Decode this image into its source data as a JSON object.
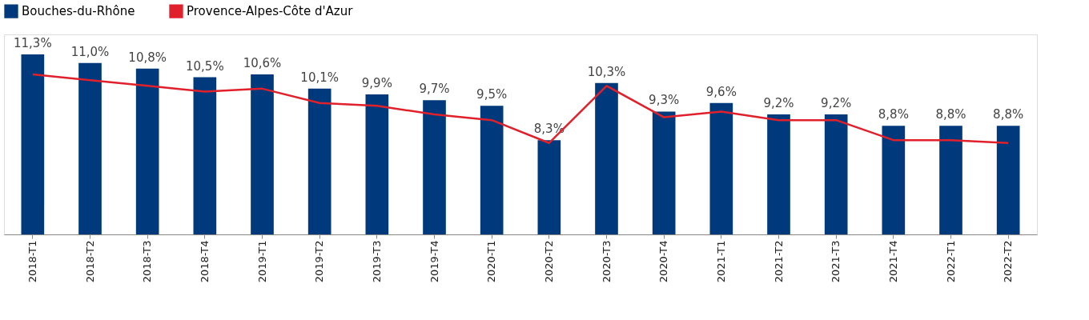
{
  "chart_data": {
    "type": "bar",
    "categories": [
      "2018-T1",
      "2018-T2",
      "2018-T3",
      "2018-T4",
      "2019-T1",
      "2019-T2",
      "2019-T3",
      "2019-T4",
      "2020-T1",
      "2020-T2",
      "2020-T3",
      "2020-T4",
      "2021-T1",
      "2021-T2",
      "2021-T3",
      "2021-T4",
      "2022-T1",
      "2022-T2"
    ],
    "series": [
      {
        "name": "Bouches-du-Rhône",
        "color": "#003a7d",
        "values": [
          11.3,
          11.0,
          10.8,
          10.5,
          10.6,
          10.1,
          9.9,
          9.7,
          9.5,
          8.3,
          10.3,
          9.3,
          9.6,
          9.2,
          9.2,
          8.8,
          8.8,
          8.8
        ],
        "value_labels": [
          "11,3%",
          "11,0%",
          "10,8%",
          "10,5%",
          "10,6%",
          "10,1%",
          "9,9%",
          "9,7%",
          "9,5%",
          "8,3%",
          "10,3%",
          "9,3%",
          "9,6%",
          "9,2%",
          "9,2%",
          "8,8%",
          "8,8%",
          "8,8%"
        ]
      },
      {
        "name": "Provence-Alpes-Côte d'Azur",
        "type": "line",
        "color": "#e0202b",
        "values": [
          10.6,
          10.4,
          10.2,
          10.0,
          10.1,
          9.6,
          9.5,
          9.2,
          9.0,
          8.2,
          10.2,
          9.1,
          9.3,
          9.0,
          9.0,
          8.3,
          8.3,
          8.2
        ]
      }
    ],
    "ylim": [
      5,
      12
    ],
    "tick_labels": "x",
    "legend": "top",
    "grid": false,
    "marker": "none",
    "line_style": "solid"
  }
}
